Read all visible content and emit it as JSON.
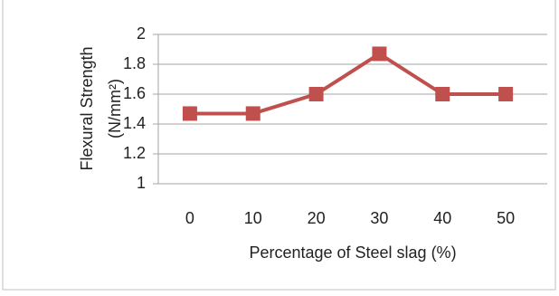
{
  "chart_data": {
    "type": "line",
    "y_label": [
      "Flexural Strength",
      "(N/mm²)"
    ],
    "x_label": "Percentage of Steel slag (%)",
    "categories": [
      "0",
      "10",
      "20",
      "30",
      "40",
      "50"
    ],
    "values": [
      1.47,
      1.47,
      1.6,
      1.87,
      1.6,
      1.6
    ],
    "color": "#c0504d",
    "ylim": [
      1,
      2
    ],
    "yticks": [
      1,
      1.2,
      1.4,
      1.6,
      1.8,
      2
    ],
    "grid": true
  }
}
